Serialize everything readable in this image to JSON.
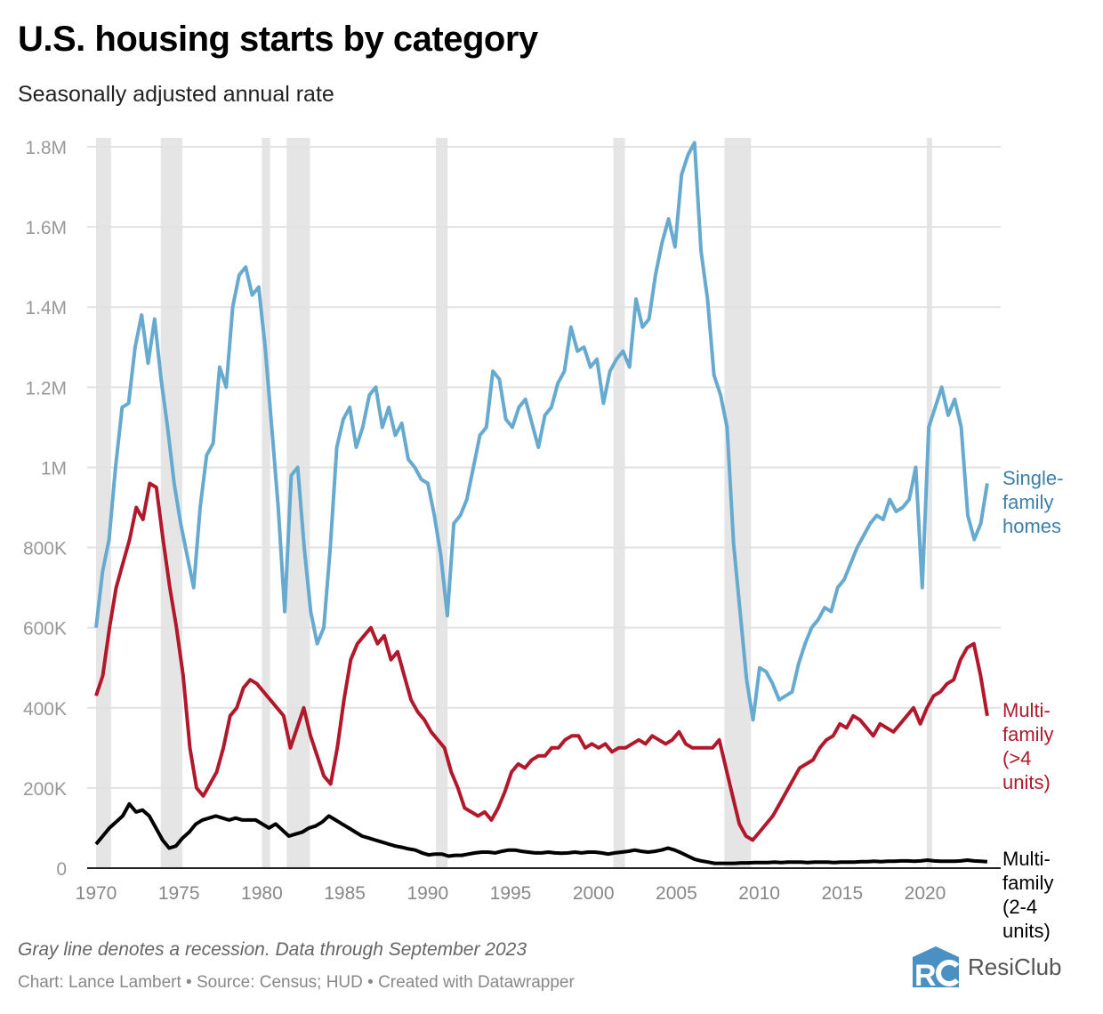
{
  "header": {
    "title": "U.S. housing starts by category",
    "subtitle": "Seasonally adjusted annual rate"
  },
  "footer": {
    "note": "Gray line denotes a recession. Data through September 2023",
    "credit": "Chart: Lance Lambert • Source: Census; HUD • Created with Datawrapper",
    "logo_text": "ResiClub"
  },
  "chart_data": {
    "type": "line",
    "title": "U.S. housing starts by category",
    "subtitle": "Seasonally adjusted annual rate",
    "xlabel": "",
    "ylabel": "",
    "xlim": [
      1970,
      2023.75
    ],
    "ylim": [
      0,
      1800000
    ],
    "grid": true,
    "y_ticks": [
      0,
      200000,
      400000,
      600000,
      800000,
      1000000,
      1200000,
      1400000,
      1600000,
      1800000
    ],
    "y_tick_labels": [
      "0",
      "200K",
      "400K",
      "600K",
      "800K",
      "1M",
      "1.2M",
      "1.4M",
      "1.6M",
      "1.8M"
    ],
    "x_ticks": [
      1970,
      1975,
      1980,
      1985,
      1990,
      1995,
      2000,
      2005,
      2010,
      2015,
      2020
    ],
    "x_tick_labels": [
      "1970",
      "1975",
      "1980",
      "1985",
      "1990",
      "1995",
      "2000",
      "2005",
      "2010",
      "2015",
      "2020"
    ],
    "recessions": [
      [
        1970.0,
        1970.9
      ],
      [
        1973.9,
        1975.2
      ],
      [
        1980.0,
        1980.5
      ],
      [
        1981.5,
        1982.9
      ],
      [
        1990.5,
        1991.2
      ],
      [
        2001.2,
        2001.9
      ],
      [
        2007.9,
        2009.5
      ],
      [
        2020.1,
        2020.3
      ]
    ],
    "x_step": 0.5,
    "x_start": 1970,
    "series": [
      {
        "name": "Single-family homes",
        "label": "Single-\nfamily\nhomes",
        "color": "#67aacf",
        "label_color": "#3c7fab",
        "values": [
          600000,
          740000,
          820000,
          1000000,
          1150000,
          1160000,
          1300000,
          1380000,
          1260000,
          1370000,
          1220000,
          1100000,
          960000,
          860000,
          780000,
          700000,
          900000,
          1030000,
          1060000,
          1250000,
          1200000,
          1400000,
          1480000,
          1500000,
          1430000,
          1450000,
          1300000,
          1100000,
          900000,
          640000,
          980000,
          1000000,
          800000,
          640000,
          560000,
          600000,
          800000,
          1050000,
          1120000,
          1150000,
          1050000,
          1100000,
          1180000,
          1200000,
          1100000,
          1150000,
          1080000,
          1110000,
          1020000,
          1000000,
          970000,
          960000,
          880000,
          780000,
          630000,
          860000,
          880000,
          920000,
          1000000,
          1080000,
          1100000,
          1240000,
          1220000,
          1120000,
          1100000,
          1150000,
          1170000,
          1110000,
          1050000,
          1130000,
          1150000,
          1210000,
          1240000,
          1350000,
          1290000,
          1300000,
          1250000,
          1270000,
          1160000,
          1240000,
          1270000,
          1290000,
          1250000,
          1420000,
          1350000,
          1370000,
          1480000,
          1560000,
          1620000,
          1550000,
          1730000,
          1780000,
          1810000,
          1540000,
          1420000,
          1230000,
          1180000,
          1100000,
          810000,
          640000,
          470000,
          370000,
          500000,
          490000,
          460000,
          420000,
          430000,
          440000,
          510000,
          560000,
          600000,
          620000,
          650000,
          640000,
          700000,
          720000,
          760000,
          800000,
          830000,
          860000,
          880000,
          870000,
          920000,
          890000,
          900000,
          920000,
          1000000,
          700000,
          1100000,
          1150000,
          1200000,
          1130000,
          1170000,
          1100000,
          880000,
          820000,
          860000,
          960000
        ]
      },
      {
        "name": "Multi-family (>4 units)",
        "label": "Multi-\nfamily\n(>4\nunits)",
        "color": "#b2182b",
        "label_color": "#b2182b",
        "values": [
          430000,
          480000,
          600000,
          700000,
          760000,
          820000,
          900000,
          870000,
          960000,
          950000,
          820000,
          700000,
          600000,
          480000,
          300000,
          200000,
          180000,
          210000,
          240000,
          300000,
          380000,
          400000,
          450000,
          470000,
          460000,
          440000,
          420000,
          400000,
          380000,
          300000,
          350000,
          400000,
          330000,
          280000,
          230000,
          210000,
          300000,
          420000,
          520000,
          560000,
          580000,
          600000,
          560000,
          580000,
          520000,
          540000,
          480000,
          420000,
          390000,
          370000,
          340000,
          320000,
          300000,
          240000,
          200000,
          150000,
          140000,
          130000,
          140000,
          120000,
          150000,
          190000,
          240000,
          260000,
          250000,
          270000,
          280000,
          280000,
          300000,
          300000,
          320000,
          330000,
          330000,
          300000,
          310000,
          300000,
          310000,
          290000,
          300000,
          300000,
          310000,
          320000,
          310000,
          330000,
          320000,
          310000,
          320000,
          340000,
          310000,
          300000,
          300000,
          300000,
          300000,
          320000,
          250000,
          180000,
          110000,
          80000,
          70000,
          90000,
          110000,
          130000,
          160000,
          190000,
          220000,
          250000,
          260000,
          270000,
          300000,
          320000,
          330000,
          360000,
          350000,
          380000,
          370000,
          350000,
          330000,
          360000,
          350000,
          340000,
          360000,
          380000,
          400000,
          360000,
          400000,
          430000,
          440000,
          460000,
          470000,
          520000,
          550000,
          560000,
          480000,
          380000
        ]
      },
      {
        "name": "Multi-family (2-4 units)",
        "label": "Multi-\nfamily\n(2-4\nunits)",
        "color": "#000000",
        "label_color": "#000000",
        "values": [
          60000,
          80000,
          100000,
          115000,
          130000,
          160000,
          140000,
          145000,
          130000,
          100000,
          70000,
          50000,
          55000,
          75000,
          90000,
          110000,
          120000,
          125000,
          130000,
          125000,
          120000,
          125000,
          120000,
          120000,
          120000,
          110000,
          100000,
          110000,
          95000,
          80000,
          85000,
          90000,
          100000,
          105000,
          115000,
          130000,
          120000,
          110000,
          100000,
          90000,
          80000,
          75000,
          70000,
          65000,
          60000,
          55000,
          52000,
          48000,
          45000,
          38000,
          33000,
          35000,
          35000,
          30000,
          32000,
          32000,
          35000,
          38000,
          40000,
          40000,
          38000,
          42000,
          45000,
          45000,
          42000,
          40000,
          38000,
          38000,
          40000,
          38000,
          37000,
          38000,
          40000,
          38000,
          40000,
          40000,
          38000,
          35000,
          38000,
          40000,
          42000,
          45000,
          42000,
          40000,
          42000,
          45000,
          50000,
          45000,
          38000,
          30000,
          22000,
          18000,
          15000,
          12000,
          12000,
          12000,
          12000,
          13000,
          13000,
          14000,
          14000,
          14000,
          15000,
          14000,
          15000,
          15000,
          15000,
          14000,
          15000,
          15000,
          15000,
          14000,
          15000,
          15000,
          15000,
          16000,
          16000,
          17000,
          16000,
          17000,
          17000,
          18000,
          18000,
          17000,
          18000,
          20000,
          18000,
          17000,
          17000,
          17000,
          18000,
          20000,
          18000,
          17000,
          16000
        ]
      }
    ]
  }
}
